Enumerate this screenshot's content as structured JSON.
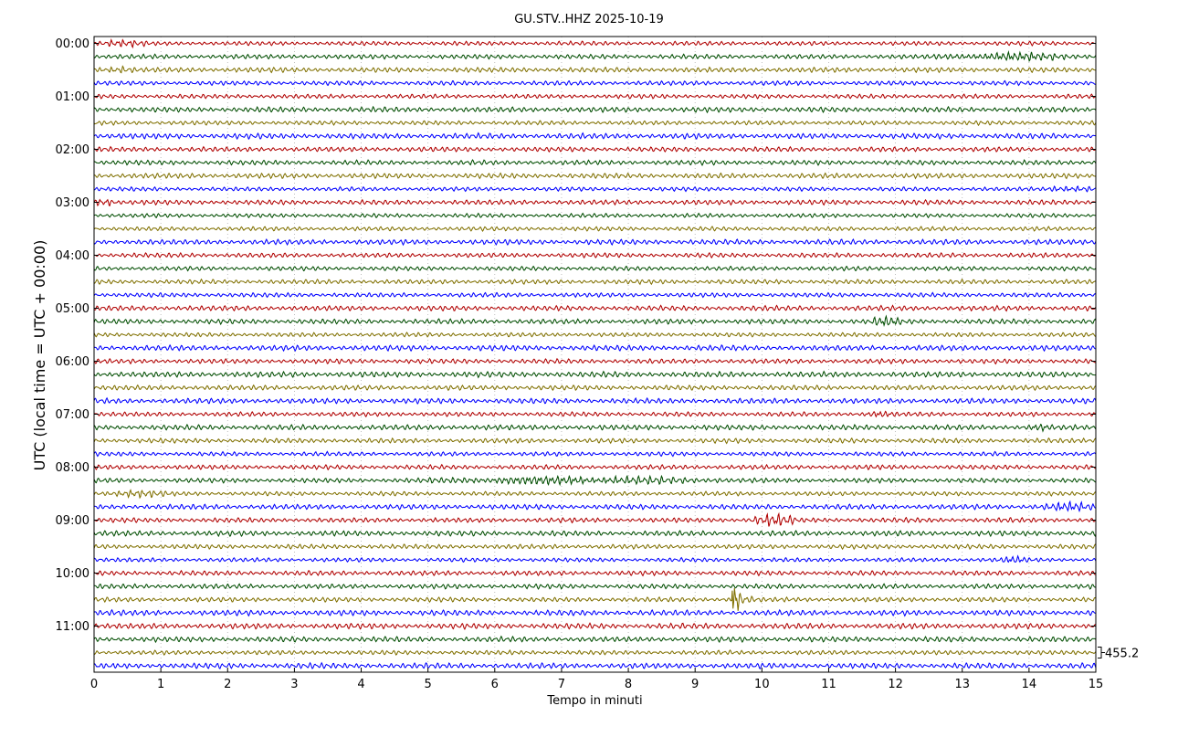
{
  "chart_data": {
    "type": "line",
    "title": "GU.STV..HHZ 2025-10-19",
    "xlabel": "Tempo in minuti",
    "ylabel": "UTC (local time = UTC + 00:00)",
    "xlim": [
      0,
      15
    ],
    "x_ticks": [
      "0",
      "1",
      "2",
      "3",
      "4",
      "5",
      "6",
      "7",
      "8",
      "9",
      "10",
      "11",
      "12",
      "13",
      "14",
      "15"
    ],
    "row_minutes": 15,
    "row_start_labels": [
      "00:00",
      "00:15",
      "00:30",
      "00:45",
      "01:00",
      "01:15",
      "01:30",
      "01:45",
      "02:00",
      "02:15",
      "02:30",
      "02:45",
      "03:00",
      "03:15",
      "03:30",
      "03:45",
      "04:00",
      "04:15",
      "04:30",
      "04:45",
      "05:00",
      "05:15",
      "05:30",
      "05:45",
      "06:00",
      "06:15",
      "06:30",
      "06:45",
      "07:00",
      "07:15",
      "07:30",
      "07:45",
      "08:00",
      "08:15",
      "08:30",
      "08:45",
      "09:00",
      "09:15",
      "09:30",
      "09:45",
      "10:00",
      "10:15",
      "10:30",
      "10:45",
      "11:00",
      "11:15",
      "11:30",
      "11:45"
    ],
    "y_tick_labels": [
      "00:00",
      "01:00",
      "02:00",
      "03:00",
      "04:00",
      "05:00",
      "06:00",
      "07:00",
      "08:00",
      "09:00",
      "10:00",
      "11:00"
    ],
    "trace_colors": [
      "#b00000",
      "#004d00",
      "#807000",
      "#0000ff"
    ],
    "grid": true,
    "grid_style": "dotted vertical at each minute",
    "scale_label": "455.2",
    "events": [
      {
        "row": 0,
        "minute_start": 0.0,
        "minute_end": 0.8,
        "amplitude": 1.6
      },
      {
        "row": 1,
        "minute_start": 12.5,
        "minute_end": 15.0,
        "amplitude": 1.7
      },
      {
        "row": 2,
        "minute_start": 0.0,
        "minute_end": 0.6,
        "amplitude": 1.5
      },
      {
        "row": 11,
        "minute_start": 14.3,
        "minute_end": 15.0,
        "amplitude": 1.8
      },
      {
        "row": 12,
        "minute_start": 0.0,
        "minute_end": 0.3,
        "amplitude": 2.2
      },
      {
        "row": 21,
        "minute_start": 11.6,
        "minute_end": 12.1,
        "amplitude": 1.8
      },
      {
        "row": 28,
        "minute_start": 11.5,
        "minute_end": 12.0,
        "amplitude": 1.4
      },
      {
        "row": 29,
        "minute_start": 14.0,
        "minute_end": 14.3,
        "amplitude": 1.4
      },
      {
        "row": 33,
        "minute_start": 5.0,
        "minute_end": 9.5,
        "amplitude": 1.7
      },
      {
        "row": 34,
        "minute_start": 0.1,
        "minute_end": 1.1,
        "amplitude": 1.8
      },
      {
        "row": 35,
        "minute_start": 14.2,
        "minute_end": 15.0,
        "amplitude": 1.6
      },
      {
        "row": 36,
        "minute_start": 9.8,
        "minute_end": 10.5,
        "amplitude": 2.4
      },
      {
        "row": 39,
        "minute_start": 13.5,
        "minute_end": 14.0,
        "amplitude": 1.5
      },
      {
        "row": 42,
        "minute_start": 9.55,
        "minute_end": 10.1,
        "amplitude": 7.0,
        "type": "spike"
      }
    ]
  }
}
